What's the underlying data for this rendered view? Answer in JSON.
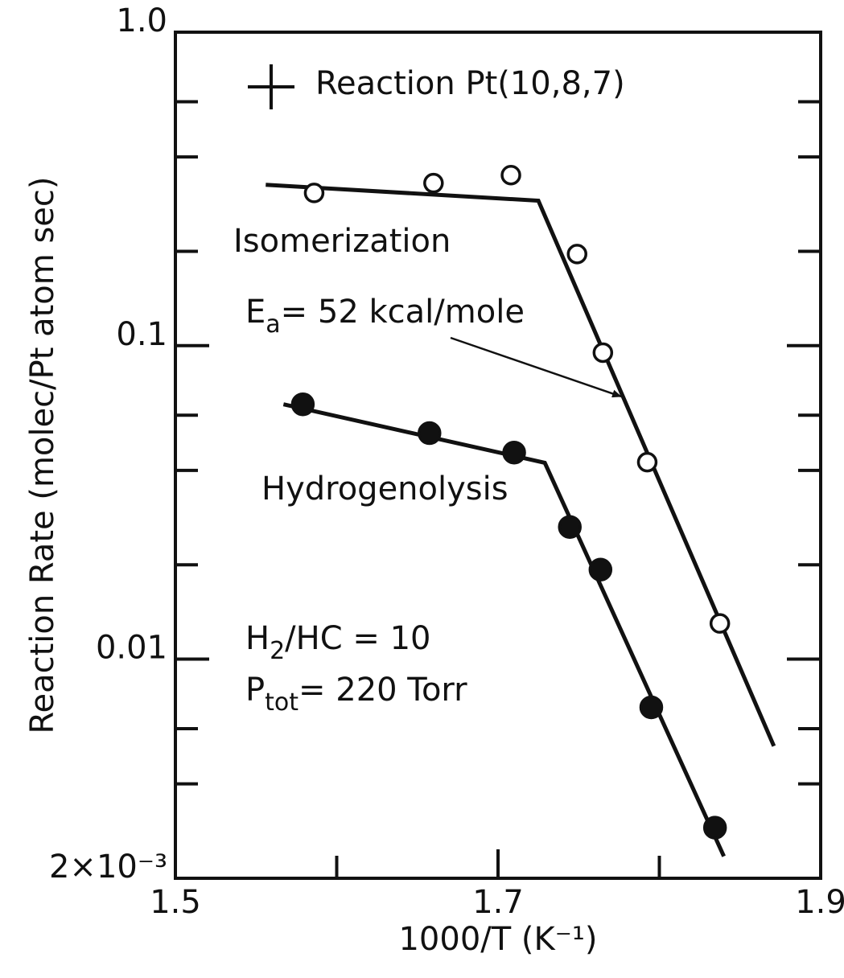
{
  "chart_data": {
    "type": "scatter",
    "y_label": "Reaction Rate (molec/Pt atom sec)",
    "x_label": "1000/T (K⁻¹)",
    "legend_note": "Reaction  Pt(10,8,7)",
    "ea_note": {
      "text": "E",
      "sub": "a",
      "rest": "= 52 kcal/mole"
    },
    "ratio_note": {
      "text": "H",
      "sub": "2",
      "rest": "/HC = 10"
    },
    "pressure_note": {
      "text": "P",
      "sub": "tot",
      "rest": "= 220 Torr"
    },
    "log_y": true,
    "xlim": [
      1.5,
      1.9
    ],
    "xticks": [
      1.5,
      1.7,
      1.9
    ],
    "xminor_ticks": [
      1.6,
      1.8
    ],
    "ylim": [
      0.002,
      1
    ],
    "yticks": [
      {
        "value": 1,
        "label": "1.0"
      },
      0.1,
      0.01,
      {
        "value": 0.002,
        "label": "2×10⁻³"
      }
    ],
    "yminor_ticks": [
      0.6,
      0.4,
      0.2,
      0.06,
      0.04,
      0.02,
      0.006,
      0.004
    ],
    "series": [
      {
        "name": "Isomerization",
        "marker": "open",
        "color": "#111111",
        "x": [
          1.586,
          1.66,
          1.708,
          1.749,
          1.765,
          1.7925,
          1.8375
        ],
        "values": [
          0.307,
          0.33,
          0.35,
          0.196,
          0.095,
          0.0425,
          0.013
        ],
        "fit_x": [
          1.556,
          1.725,
          1.871
        ],
        "fit_values": [
          0.326,
          0.29,
          0.00528
        ]
      },
      {
        "name": "Hydrogenolysis",
        "marker": "filled",
        "color": "#111111",
        "x": [
          1.579,
          1.6575,
          1.71,
          1.7445,
          1.7635,
          1.795,
          1.8345
        ],
        "values": [
          0.065,
          0.0526,
          0.0456,
          0.0264,
          0.0193,
          0.00702,
          0.0029
        ],
        "fit_x": [
          1.567,
          1.729,
          1.84
        ],
        "fit_values": [
          0.065,
          0.0423,
          0.00235
        ]
      }
    ]
  }
}
